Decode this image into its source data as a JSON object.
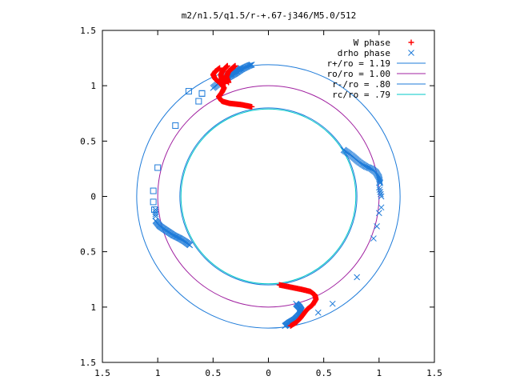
{
  "chart_data": {
    "type": "scatter",
    "title": "m2/n1.5/q1.5/r-+.67-j346/M5.0/512",
    "xlim": [
      -1.5,
      1.5
    ],
    "ylim": [
      -1.5,
      1.5
    ],
    "xticks": [
      {
        "value": -1.5,
        "label": "1.5"
      },
      {
        "value": -1.0,
        "label": "1"
      },
      {
        "value": -0.5,
        "label": "0.5"
      },
      {
        "value": 0,
        "label": "0"
      },
      {
        "value": 0.5,
        "label": "0.5"
      },
      {
        "value": 1.0,
        "label": "1"
      },
      {
        "value": 1.5,
        "label": "1.5"
      }
    ],
    "yticks": [
      {
        "value": 1.5,
        "label": "1.5"
      },
      {
        "value": 1.0,
        "label": "1"
      },
      {
        "value": 0.5,
        "label": "0.5"
      },
      {
        "value": 0,
        "label": "0"
      },
      {
        "value": -0.5,
        "label": "0.5"
      },
      {
        "value": -1.0,
        "label": "1"
      },
      {
        "value": -1.5,
        "label": "1.5"
      }
    ],
    "grid": false,
    "legend_position": "top-right",
    "series": [
      {
        "name": "W phase",
        "kind": "points",
        "marker": "plus",
        "color": "#ff0000",
        "curves": [
          {
            "points": [
              [
                -0.44,
                1.16
              ],
              [
                -0.48,
                1.13
              ],
              [
                -0.5,
                1.1
              ],
              [
                -0.48,
                1.06
              ],
              [
                -0.43,
                1.02
              ],
              [
                -0.4,
                0.98
              ],
              [
                -0.42,
                0.94
              ],
              [
                -0.45,
                0.9
              ],
              [
                -0.42,
                0.86
              ],
              [
                -0.35,
                0.84
              ],
              [
                -0.25,
                0.83
              ],
              [
                -0.15,
                0.81
              ]
            ],
            "samples": 80
          },
          {
            "points": [
              [
                -0.37,
                1.18
              ],
              [
                -0.41,
                1.14
              ],
              [
                -0.43,
                1.1
              ],
              [
                -0.42,
                1.06
              ],
              [
                -0.39,
                1.02
              ]
            ],
            "samples": 40
          },
          {
            "points": [
              [
                -0.3,
                1.18
              ],
              [
                -0.36,
                1.13
              ],
              [
                -0.38,
                1.08
              ],
              [
                -0.36,
                1.03
              ]
            ],
            "samples": 34
          },
          {
            "points": [
              [
                0.1,
                -0.8
              ],
              [
                0.2,
                -0.82
              ],
              [
                0.3,
                -0.84
              ],
              [
                0.38,
                -0.86
              ],
              [
                0.42,
                -0.89
              ],
              [
                0.43,
                -0.93
              ],
              [
                0.4,
                -0.98
              ],
              [
                0.35,
                -1.02
              ],
              [
                0.32,
                -1.06
              ],
              [
                0.29,
                -1.1
              ],
              [
                0.25,
                -1.14
              ],
              [
                0.2,
                -1.17
              ]
            ],
            "samples": 80
          }
        ]
      },
      {
        "name": "drho phase",
        "kind": "points",
        "marker": "cross",
        "color": "#1e7bd9",
        "curves": [
          {
            "points": [
              [
                -0.37,
                1.07
              ],
              [
                -0.3,
                1.11
              ],
              [
                -0.24,
                1.15
              ],
              [
                -0.18,
                1.18
              ],
              [
                -0.15,
                1.19
              ]
            ],
            "samples": 30
          },
          {
            "points": [
              [
                -0.5,
                0.98
              ],
              [
                -0.45,
                1.02
              ],
              [
                -0.38,
                1.08
              ],
              [
                -0.32,
                1.12
              ],
              [
                -0.25,
                1.16
              ]
            ],
            "samples": 30
          },
          {
            "points": [
              [
                0.68,
                0.42
              ],
              [
                0.75,
                0.37
              ],
              [
                0.82,
                0.31
              ],
              [
                0.88,
                0.27
              ],
              [
                0.93,
                0.25
              ],
              [
                0.97,
                0.22
              ],
              [
                1.0,
                0.17
              ],
              [
                1.01,
                0.12
              ]
            ],
            "samples": 45
          },
          {
            "points": [
              [
                1.0,
                0.08
              ],
              [
                1.01,
                0.04
              ],
              [
                1.02,
                0.0
              ]
            ],
            "samples": 5
          },
          {
            "points": [
              [
                -1.02,
                -0.22
              ],
              [
                -0.98,
                -0.27
              ],
              [
                -0.92,
                -0.31
              ],
              [
                -0.86,
                -0.35
              ],
              [
                -0.8,
                -0.38
              ],
              [
                -0.75,
                -0.41
              ],
              [
                -0.71,
                -0.44
              ]
            ],
            "samples": 45
          },
          {
            "points": [
              [
                -1.02,
                -0.12
              ],
              [
                -1.02,
                -0.18
              ]
            ],
            "samples": 4
          },
          {
            "points": [
              [
                0.25,
                -0.97
              ],
              [
                0.28,
                -1.0
              ],
              [
                0.3,
                -1.03
              ],
              [
                0.28,
                -1.07
              ],
              [
                0.24,
                -1.11
              ],
              [
                0.19,
                -1.14
              ],
              [
                0.15,
                -1.17
              ]
            ],
            "samples": 45
          }
        ],
        "isolated": [
          [
            1.0,
            -0.15
          ],
          [
            0.98,
            -0.27
          ],
          [
            0.95,
            -0.38
          ],
          [
            1.02,
            -0.1
          ],
          [
            0.8,
            -0.73
          ],
          [
            0.58,
            -0.97
          ],
          [
            0.45,
            -1.05
          ]
        ]
      },
      {
        "name": "",
        "kind": "points",
        "marker": "square",
        "color": "#1e7bd9",
        "points": [
          [
            -0.6,
            0.93
          ],
          [
            -0.6,
            0.93
          ],
          [
            -0.63,
            0.86
          ],
          [
            -0.84,
            0.64
          ],
          [
            -1.0,
            0.26
          ],
          [
            -1.04,
            0.05
          ],
          [
            -1.04,
            -0.05
          ],
          [
            -1.03,
            -0.12
          ],
          [
            -0.72,
            0.95
          ]
        ]
      },
      {
        "name": "r+/ro = 1.19",
        "kind": "circle",
        "radius": 1.19,
        "color": "#1e7bd9"
      },
      {
        "name": "ro/ro = 1.00",
        "kind": "circle",
        "radius": 1.0,
        "color": "#a020a0"
      },
      {
        "name": "r-/ro = .80",
        "kind": "circle",
        "radius": 0.8,
        "color": "#1e7bd9"
      },
      {
        "name": "rc/ro = .79",
        "kind": "circle",
        "radius": 0.79,
        "color": "#00c8c8"
      }
    ]
  }
}
